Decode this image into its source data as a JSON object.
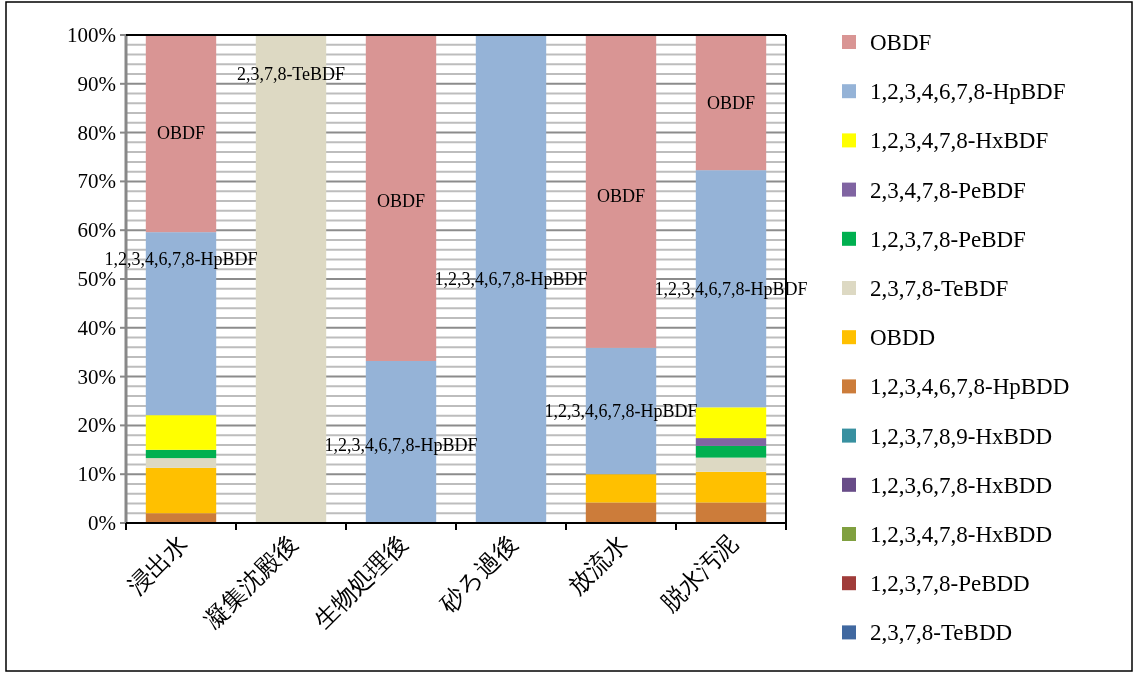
{
  "chart_data": {
    "type": "bar",
    "stacked": true,
    "categories": [
      "浸出水",
      "凝集沈殿後",
      "生物処理後",
      "砂ろ過後",
      "放流水",
      "脱水汚泥"
    ],
    "series": [
      {
        "name": "2,3,7,8-TeBDD",
        "color": "#4068a0",
        "values": [
          0,
          0,
          0,
          0,
          0,
          0
        ]
      },
      {
        "name": "1,2,3,7,8-PeBDD",
        "color": "#a03c3a",
        "values": [
          0,
          0,
          0,
          0,
          0,
          0
        ]
      },
      {
        "name": "1,2,3,4,7,8-HxBDD",
        "color": "#80a040",
        "values": [
          0,
          0,
          0,
          0,
          0,
          0
        ]
      },
      {
        "name": "1,2,3,6,7,8-HxBDD",
        "color": "#684c88",
        "values": [
          0,
          0,
          0,
          0,
          0,
          0
        ]
      },
      {
        "name": "1,2,3,7,8,9-HxBDD",
        "color": "#3890a0",
        "values": [
          0,
          0,
          0,
          0,
          0,
          0
        ]
      },
      {
        "name": "1,2,3,4,6,7,8-HpBDD",
        "color": "#cc7c3a",
        "values": [
          2.0,
          0,
          0,
          0,
          4.2,
          4.2
        ]
      },
      {
        "name": "OBDD",
        "color": "#ffc000",
        "values": [
          9.3,
          0,
          0,
          0,
          5.8,
          6.3
        ]
      },
      {
        "name": "2,3,7,8-TeBDF",
        "color": "#ddd9c3",
        "values": [
          2.0,
          100,
          0,
          0,
          0,
          2.9
        ]
      },
      {
        "name": "1,2,3,7,8-PeBDF",
        "color": "#00b050",
        "values": [
          1.7,
          0,
          0,
          0,
          0,
          2.4
        ]
      },
      {
        "name": "2,3,4,7,8-PeBDF",
        "color": "#8064a2",
        "values": [
          0,
          0,
          0,
          0,
          0,
          1.6
        ]
      },
      {
        "name": "1,2,3,4,7,8-HxBDF",
        "color": "#ffff00",
        "values": [
          7.1,
          0,
          0,
          0,
          0,
          6.3
        ]
      },
      {
        "name": "1,2,3,4,6,7,8-HpBDF",
        "color": "#95b3d7",
        "values": [
          37.5,
          0,
          33.2,
          100,
          25.9,
          48.6
        ]
      },
      {
        "name": "OBDF",
        "color": "#d99594",
        "values": [
          40.4,
          0,
          66.8,
          0,
          64.1,
          27.7
        ]
      }
    ],
    "ylim": [
      0,
      100
    ],
    "yticks": [
      {
        "value": 0,
        "label": "0%"
      },
      {
        "value": 2,
        "label": null
      },
      {
        "value": 4,
        "label": null
      },
      {
        "value": 6,
        "label": null
      },
      {
        "value": 8,
        "label": null
      },
      {
        "value": 10,
        "label": "10%"
      },
      {
        "value": 12,
        "label": null
      },
      {
        "value": 14,
        "label": null
      },
      {
        "value": 16,
        "label": null
      },
      {
        "value": 18,
        "label": null
      },
      {
        "value": 20,
        "label": "20%"
      },
      {
        "value": 22,
        "label": null
      },
      {
        "value": 24,
        "label": null
      },
      {
        "value": 26,
        "label": null
      },
      {
        "value": 28,
        "label": null
      },
      {
        "value": 30,
        "label": "30%"
      },
      {
        "value": 32,
        "label": null
      },
      {
        "value": 34,
        "label": null
      },
      {
        "value": 36,
        "label": null
      },
      {
        "value": 38,
        "label": null
      },
      {
        "value": 40,
        "label": "40%"
      },
      {
        "value": 42,
        "label": null
      },
      {
        "value": 44,
        "label": null
      },
      {
        "value": 46,
        "label": null
      },
      {
        "value": 48,
        "label": null
      },
      {
        "value": 50,
        "label": "50%"
      },
      {
        "value": 52,
        "label": null
      },
      {
        "value": 54,
        "label": null
      },
      {
        "value": 56,
        "label": null
      },
      {
        "value": 58,
        "label": null
      },
      {
        "value": 60,
        "label": "60%"
      },
      {
        "value": 62,
        "label": null
      },
      {
        "value": 64,
        "label": null
      },
      {
        "value": 66,
        "label": null
      },
      {
        "value": 68,
        "label": null
      },
      {
        "value": 70,
        "label": "70%"
      },
      {
        "value": 72,
        "label": null
      },
      {
        "value": 74,
        "label": null
      },
      {
        "value": 76,
        "label": null
      },
      {
        "value": 78,
        "label": null
      },
      {
        "value": 80,
        "label": "80%"
      },
      {
        "value": 82,
        "label": null
      },
      {
        "value": 84,
        "label": null
      },
      {
        "value": 86,
        "label": null
      },
      {
        "value": 88,
        "label": null
      },
      {
        "value": 90,
        "label": "90%"
      },
      {
        "value": 92,
        "label": null
      },
      {
        "value": 94,
        "label": null
      },
      {
        "value": 96,
        "label": null
      },
      {
        "value": 98,
        "label": null
      },
      {
        "value": 100,
        "label": "100%"
      }
    ],
    "grid": "y",
    "legend": "right",
    "annotations": [
      {
        "text": "OBDF",
        "x": "浸出水",
        "y": 80
      },
      {
        "text": "1,2,3,4,6,7,8-HpBDF",
        "x": "浸出水",
        "y": 54
      },
      {
        "text": "2,3,7,8-TeBDF",
        "x": "凝集沈殿後",
        "y": 92
      },
      {
        "text": "OBDF",
        "x": "生物処理後",
        "y": 66
      },
      {
        "text": "1,2,3,4,6,7,8-HpBDF",
        "x": "生物処理後",
        "y": 16
      },
      {
        "text": "1,2,3,4,6,7,8-HpBDF",
        "x": "砂ろ過後",
        "y": 50
      },
      {
        "text": "OBDF",
        "x": "放流水",
        "y": 67
      },
      {
        "text": "1,2,3,4,6,7,8-HpBDF",
        "x": "放流水",
        "y": 23
      },
      {
        "text": "OBDF",
        "x": "脱水汚泥",
        "y": 86
      },
      {
        "text": "1,2,3,4,6,7,8-HpBDF",
        "x": "脱水汚泥",
        "y": 48
      }
    ]
  }
}
